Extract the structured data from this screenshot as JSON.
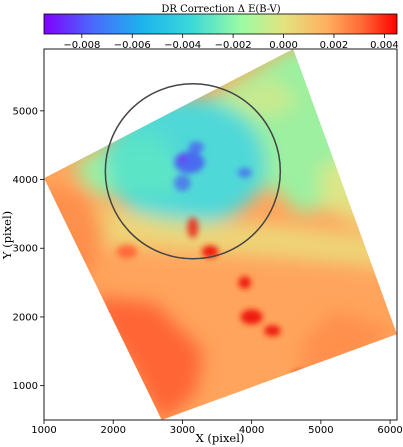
{
  "chart_data": {
    "type": "heatmap",
    "title": "DR Correction Δ E(B-V)",
    "xlabel": "X (pixel)",
    "ylabel": "Y (pixel)",
    "xlim": [
      1000,
      6100
    ],
    "ylim": [
      500,
      5900
    ],
    "x_ticks": [
      1000,
      2000,
      3000,
      4000,
      5000,
      6000
    ],
    "y_ticks": [
      1000,
      2000,
      3000,
      4000,
      5000
    ],
    "x_tick_labels": [
      "1000",
      "2000",
      "3000",
      "4000",
      "5000",
      "6000"
    ],
    "y_tick_labels": [
      "1000",
      "2000",
      "3000",
      "4000",
      "5000"
    ],
    "colorbar": {
      "colormap": "rainbow",
      "range": [
        -0.0095,
        0.0045
      ],
      "ticks": [
        -0.008,
        -0.006,
        -0.004,
        -0.002,
        0.0,
        0.002,
        0.004
      ],
      "tick_labels": [
        "−0.008",
        "−0.006",
        "−0.004",
        "−0.002",
        "0.000",
        "0.002",
        "0.004"
      ]
    },
    "footprint_corners": [
      {
        "x": 1000,
        "y": 4020
      },
      {
        "x": 4600,
        "y": 5900
      },
      {
        "x": 6100,
        "y": 1750
      },
      {
        "x": 2700,
        "y": 500
      }
    ],
    "circle": {
      "center": [
        3150,
        4120
      ],
      "radius": 1750
    },
    "regions": [
      {
        "name": "upper field",
        "dominant_value": -0.0012,
        "range": [
          -0.002,
          -0.0005
        ]
      },
      {
        "name": "circle interior",
        "dominant_value": -0.0048,
        "range": [
          -0.007,
          -0.004
        ]
      },
      {
        "name": "circle core minimum",
        "dominant_value": -0.0085
      },
      {
        "name": "east of circle",
        "dominant_value": -0.001
      },
      {
        "name": "western strip",
        "dominant_value": 0.0022
      },
      {
        "name": "lower-central field",
        "dominant_value": 0.0025,
        "range": [
          0.002,
          0.003
        ]
      },
      {
        "name": "lower-left wedge",
        "dominant_value": 0.0035,
        "range": [
          0.003,
          0.004
        ]
      },
      {
        "name": "dark red blobs",
        "dominant_value": 0.0043
      }
    ]
  }
}
